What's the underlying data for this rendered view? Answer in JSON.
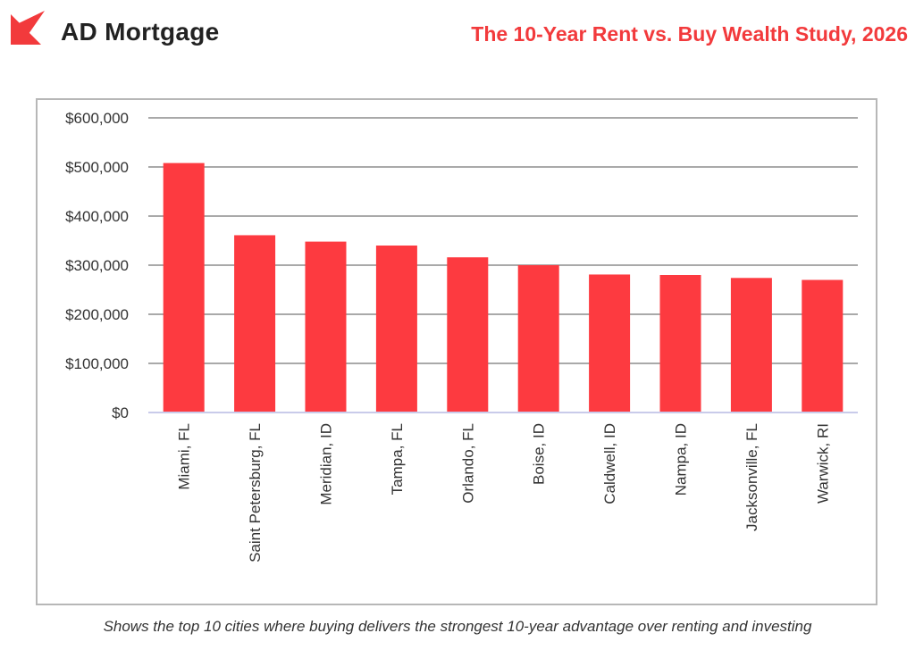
{
  "header": {
    "brand": "AD Mortgage",
    "study_title": "The 10-Year Rent vs. Buy Wealth Study, 2026",
    "accent_color": "#f23a3c"
  },
  "chart_data": {
    "type": "bar",
    "title": "The 10-Year Rent vs. Buy Wealth Study, 2026",
    "xlabel": "",
    "ylabel": "",
    "categories": [
      "Miami, FL",
      "Saint Petersburg, FL",
      "Meridian, ID",
      "Tampa, FL",
      "Orlando, FL",
      "Boise, ID",
      "Caldwell, ID",
      "Nampa, ID",
      "Jacksonville, FL",
      "Warwick, RI"
    ],
    "values": [
      508000,
      361000,
      348000,
      340000,
      316000,
      300000,
      281000,
      280000,
      274000,
      270000
    ],
    "ylim": [
      0,
      600000
    ],
    "yticks": [
      0,
      100000,
      200000,
      300000,
      400000,
      500000,
      600000
    ],
    "ytick_labels": [
      "$0",
      "$100,000",
      "$200,000",
      "$300,000",
      "$400,000",
      "$500,000",
      "$600,000"
    ],
    "grid": true,
    "bar_color": "#fd3a40",
    "grid_color": "#a9a9a9",
    "baseline_color": "#c9cbea"
  },
  "caption": "Shows the top 10 cities where buying delivers the strongest 10-year advantage over renting and investing"
}
